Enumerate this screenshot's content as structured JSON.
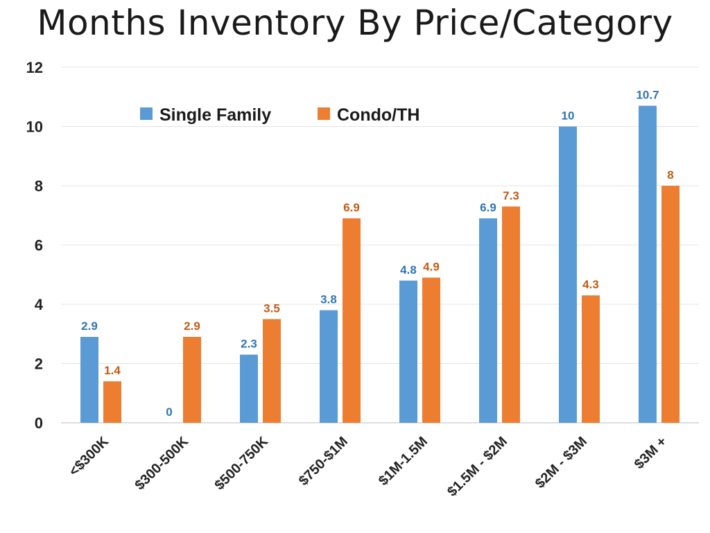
{
  "chart_data": {
    "type": "bar",
    "title": "Months Inventory By Price/Category",
    "xlabel": "",
    "ylabel": "",
    "categories": [
      "<$300K",
      "$300-500K",
      "$500-750K",
      "$750-$1M",
      "$1M-1.5M",
      "$1.5M - $2M",
      "$2M - $3M",
      "$3M +"
    ],
    "series": [
      {
        "name": "Single Family",
        "color": "#5b9bd5",
        "label_color": "#2e75b6",
        "values": [
          2.9,
          0,
          2.3,
          3.8,
          4.8,
          6.9,
          10,
          10.7
        ]
      },
      {
        "name": "Condo/TH",
        "color": "#ed7d31",
        "label_color": "#c55a11",
        "values": [
          1.4,
          2.9,
          3.5,
          6.9,
          4.9,
          7.3,
          4.3,
          8
        ]
      }
    ],
    "ylim": [
      0,
      12
    ],
    "yticks": [
      0,
      2,
      4,
      6,
      8,
      10,
      12
    ],
    "grid": true,
    "legend_position": "top-left"
  }
}
